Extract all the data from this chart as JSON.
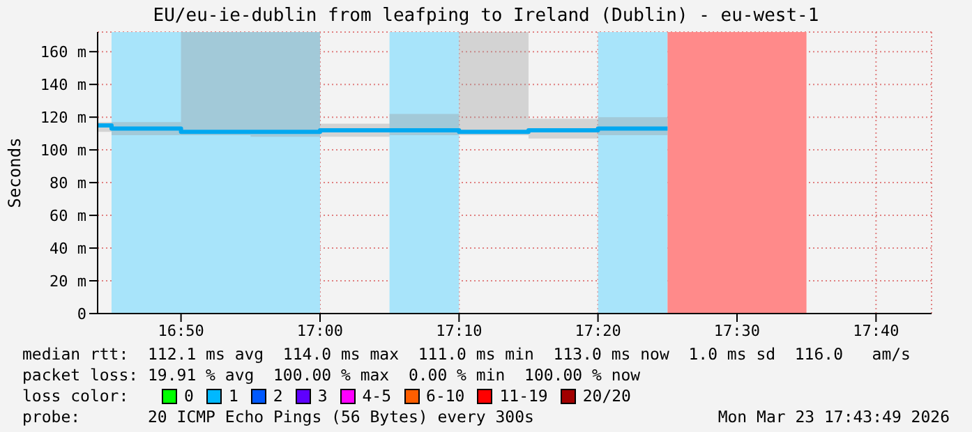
{
  "chart_data": {
    "type": "step",
    "title": "EU/eu-ie-dublin from leafping to Ireland (Dublin) - eu-west-1",
    "ylabel": "Seconds",
    "x": [
      16.7333,
      16.75,
      16.8333,
      16.9167,
      17,
      17.0833,
      17.1667,
      17.25,
      17.3333,
      17.4167
    ],
    "series": [
      {
        "color": "#00a8f0",
        "values": [
          115,
          113,
          111,
          111,
          112,
          112,
          111,
          112,
          113,
          113
        ],
        "lower": [
          111,
          109,
          109,
          108,
          108,
          109,
          109,
          107,
          109,
          109
        ],
        "upper": [
          117,
          117,
          172,
          172,
          116,
          122,
          172,
          119,
          120,
          120
        ]
      }
    ],
    "xlim": [
      16.7333,
      17.7333
    ],
    "xticks": [
      {
        "value": 16.8333,
        "label": "16:50"
      },
      {
        "value": 17,
        "label": "17:00"
      },
      {
        "value": 17.1667,
        "label": "17:10"
      },
      {
        "value": 17.3333,
        "label": "17:20"
      },
      {
        "value": 17.5,
        "label": "17:30"
      },
      {
        "value": 17.6667,
        "label": "17:40"
      }
    ],
    "ylim": [
      0,
      172
    ],
    "yticks": [
      {
        "value": 0,
        "label": "0"
      },
      {
        "value": 20,
        "label": "20 m"
      },
      {
        "value": 40,
        "label": "40 m"
      },
      {
        "value": 60,
        "label": "60 m"
      },
      {
        "value": 80,
        "label": "80 m"
      },
      {
        "value": 100,
        "label": "100 m"
      },
      {
        "value": 120,
        "label": "120 m"
      },
      {
        "value": 140,
        "label": "140 m"
      },
      {
        "value": 160,
        "label": "160 m"
      }
    ],
    "bands": [
      {
        "axis": "x",
        "from": 16.75,
        "to": 17,
        "color": "#a8e4fa"
      },
      {
        "axis": "x",
        "from": 17.0833,
        "to": 17.1667,
        "color": "#a8e4fa"
      },
      {
        "axis": "x",
        "from": 17.3333,
        "to": 17.4167,
        "color": "#a8e4fa"
      },
      {
        "axis": "x",
        "from": 17.4167,
        "to": 17.5833,
        "color": "#ff8a8a"
      }
    ],
    "grid": true,
    "line_style": "solid",
    "marker": "none",
    "annotations": [
      "median rtt:  112.1 ms avg  114.0 ms max  111.0 ms min  113.0 ms now  1.0 ms sd  116.0   am/s",
      "packet loss: 19.91 % avg  100.00 % max  0.00 % min  100.00 % now",
      "loss color:",
      "0",
      "1",
      "2",
      "3",
      "4-5",
      "6-10",
      "11-19",
      "20/20",
      "probe:       20 ICMP Echo Pings (56 Bytes) every 300s",
      "Mon Mar 23 17:43:49 2026"
    ]
  }
}
